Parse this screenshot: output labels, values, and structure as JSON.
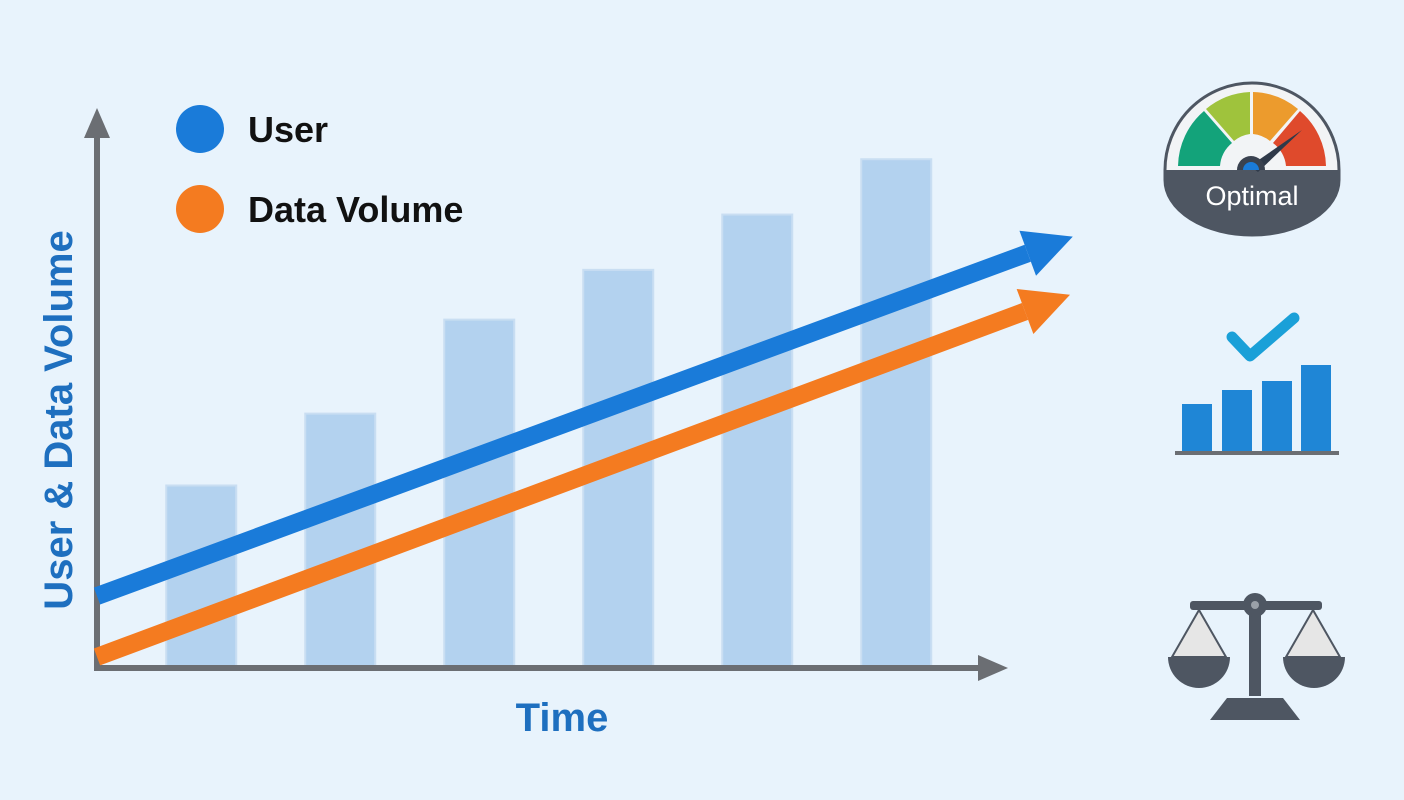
{
  "chart_data": {
    "type": "bar",
    "title": "",
    "xlabel": "Time",
    "ylabel": "User & Data Volume",
    "ylim": [
      0,
      100
    ],
    "grid": false,
    "legend_placement": "top-left",
    "bars": {
      "values": [
        33,
        46,
        63,
        72,
        82,
        92
      ],
      "color": "#b3d2ef"
    },
    "series": [
      {
        "name": "User",
        "type": "line-arrow",
        "color": "#1a7bd9",
        "x": [
          0,
          7.02
        ],
        "y": [
          13,
          78
        ]
      },
      {
        "name": "Data Volume",
        "type": "line-arrow",
        "color": "#f47b20",
        "x": [
          0,
          7.0
        ],
        "y": [
          2,
          67.5
        ]
      }
    ]
  },
  "icons": {
    "gauge": {
      "name": "gauge-icon",
      "label": "Optimal",
      "colors": [
        "#13a37a",
        "#9fc33c",
        "#ec9b2d",
        "#df4a2c"
      ]
    },
    "growth": {
      "name": "bar-chart-check-icon",
      "color": "#1f86d6"
    },
    "balance": {
      "name": "balance-scale-icon",
      "color": "#4e5662"
    }
  },
  "colors": {
    "axis": "#6b6e73",
    "label": "#1e6fbf",
    "background": "#e8f3fc"
  }
}
